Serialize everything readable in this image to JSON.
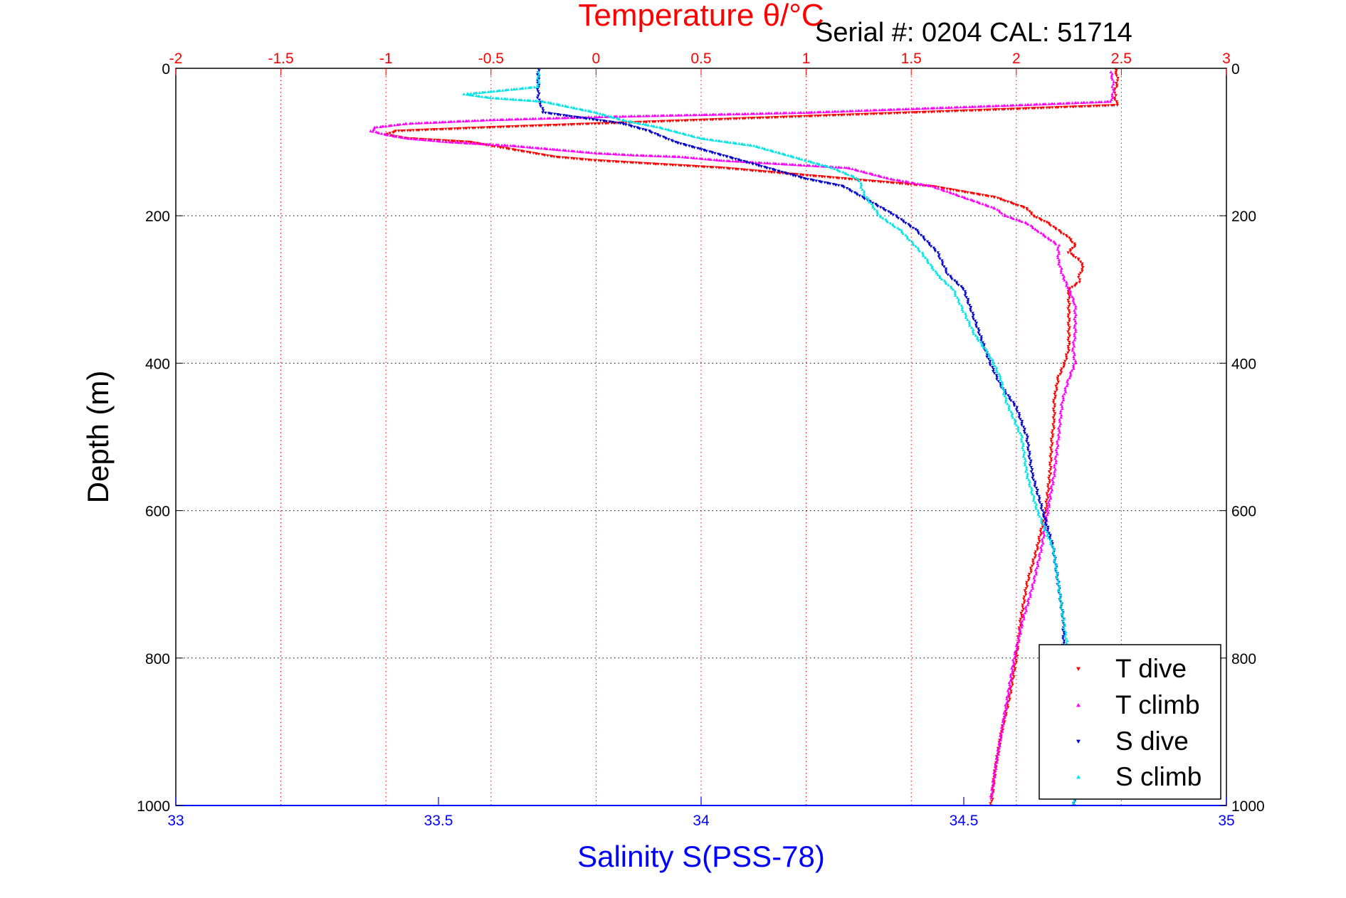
{
  "chart_data": {
    "type": "scatter",
    "title": "Temperature θ/°C",
    "annotation": "Serial #: 0204  CAL: 51714",
    "ylabel": "Depth (m)",
    "x_bottom_label": "Salinity S(PSS-78)",
    "x_top_label": "Temperature θ/°C",
    "ylim": [
      1000,
      0
    ],
    "y_ticks": [
      "0",
      "200",
      "400",
      "600",
      "800",
      "1000"
    ],
    "temperature_axis": {
      "range": [
        -2,
        3
      ],
      "ticks": [
        "-2",
        "-1.5",
        "-1",
        "-0.5",
        "0",
        "0.5",
        "1",
        "1.5",
        "2",
        "2.5",
        "3"
      ],
      "grid": "vertical dotted red"
    },
    "salinity_axis": {
      "range": [
        33,
        35
      ],
      "ticks": [
        "33",
        "33.5",
        "34",
        "34.5",
        "35"
      ]
    },
    "grid": "horizontal dotted black at y ticks; vertical dotted red at temperature ticks",
    "legend_position": "bottom-right",
    "colors": {
      "temperature": "#ff0000",
      "salinity": "#0000ff",
      "t_dive": "#ff0000",
      "t_climb": "#ff00ff",
      "s_dive": "#0000cc",
      "s_climb": "#00e5e5"
    },
    "series": [
      {
        "name": "T dive",
        "axis": "temperature",
        "marker": "triangle-down",
        "color": "#ff0000",
        "points": [
          [
            2.47,
            0
          ],
          [
            2.48,
            10
          ],
          [
            2.48,
            20
          ],
          [
            2.47,
            30
          ],
          [
            2.47,
            40
          ],
          [
            2.48,
            50
          ],
          [
            2.0,
            55
          ],
          [
            1.5,
            60
          ],
          [
            1.0,
            65
          ],
          [
            0.5,
            70
          ],
          [
            0.0,
            75
          ],
          [
            -0.5,
            80
          ],
          [
            -0.95,
            85
          ],
          [
            -1.0,
            90
          ],
          [
            -0.9,
            95
          ],
          [
            -0.6,
            100
          ],
          [
            -0.5,
            105
          ],
          [
            -0.4,
            110
          ],
          [
            -0.3,
            115
          ],
          [
            -0.2,
            120
          ],
          [
            0.0,
            125
          ],
          [
            0.3,
            130
          ],
          [
            0.6,
            135
          ],
          [
            0.8,
            140
          ],
          [
            1.0,
            145
          ],
          [
            1.2,
            150
          ],
          [
            1.4,
            155
          ],
          [
            1.6,
            160
          ],
          [
            1.7,
            165
          ],
          [
            1.8,
            170
          ],
          [
            1.9,
            175
          ],
          [
            1.95,
            180
          ],
          [
            2.0,
            185
          ],
          [
            2.05,
            190
          ],
          [
            2.08,
            200
          ],
          [
            2.15,
            210
          ],
          [
            2.2,
            220
          ],
          [
            2.25,
            230
          ],
          [
            2.28,
            240
          ],
          [
            2.25,
            250
          ],
          [
            2.3,
            260
          ],
          [
            2.32,
            270
          ],
          [
            2.3,
            280
          ],
          [
            2.3,
            290
          ],
          [
            2.25,
            300
          ],
          [
            2.25,
            320
          ],
          [
            2.25,
            340
          ],
          [
            2.25,
            360
          ],
          [
            2.25,
            380
          ],
          [
            2.23,
            400
          ],
          [
            2.2,
            420
          ],
          [
            2.18,
            450
          ],
          [
            2.18,
            480
          ],
          [
            2.17,
            500
          ],
          [
            2.16,
            550
          ],
          [
            2.14,
            600
          ],
          [
            2.1,
            650
          ],
          [
            2.05,
            700
          ],
          [
            2.02,
            750
          ],
          [
            2.0,
            800
          ],
          [
            1.97,
            850
          ],
          [
            1.93,
            900
          ],
          [
            1.9,
            950
          ],
          [
            1.88,
            1000
          ]
        ]
      },
      {
        "name": "T climb",
        "axis": "temperature",
        "marker": "triangle-up",
        "color": "#ff00ff",
        "points": [
          [
            2.45,
            5
          ],
          [
            2.46,
            15
          ],
          [
            2.46,
            25
          ],
          [
            2.46,
            35
          ],
          [
            2.45,
            45
          ],
          [
            2.0,
            50
          ],
          [
            1.5,
            55
          ],
          [
            1.0,
            60
          ],
          [
            0.5,
            63
          ],
          [
            0.0,
            66
          ],
          [
            -0.5,
            70
          ],
          [
            -0.9,
            75
          ],
          [
            -1.05,
            80
          ],
          [
            -1.07,
            85
          ],
          [
            -1.0,
            90
          ],
          [
            -0.9,
            95
          ],
          [
            -0.7,
            100
          ],
          [
            -0.4,
            105
          ],
          [
            -0.2,
            110
          ],
          [
            0.0,
            115
          ],
          [
            0.2,
            118
          ],
          [
            0.4,
            120
          ],
          [
            0.6,
            125
          ],
          [
            0.9,
            130
          ],
          [
            1.2,
            135
          ],
          [
            1.4,
            150
          ],
          [
            1.5,
            155
          ],
          [
            1.6,
            160
          ],
          [
            1.7,
            170
          ],
          [
            1.8,
            180
          ],
          [
            1.9,
            190
          ],
          [
            1.95,
            200
          ],
          [
            2.05,
            210
          ],
          [
            2.1,
            220
          ],
          [
            2.15,
            230
          ],
          [
            2.2,
            240
          ],
          [
            2.2,
            260
          ],
          [
            2.22,
            280
          ],
          [
            2.25,
            300
          ],
          [
            2.28,
            320
          ],
          [
            2.28,
            340
          ],
          [
            2.28,
            360
          ],
          [
            2.27,
            380
          ],
          [
            2.28,
            400
          ],
          [
            2.25,
            420
          ],
          [
            2.22,
            450
          ],
          [
            2.2,
            500
          ],
          [
            2.18,
            550
          ],
          [
            2.15,
            600
          ],
          [
            2.12,
            650
          ],
          [
            2.08,
            700
          ],
          [
            2.03,
            750
          ],
          [
            1.99,
            800
          ],
          [
            1.96,
            850
          ],
          [
            1.93,
            900
          ],
          [
            1.9,
            950
          ],
          [
            1.88,
            990
          ]
        ]
      },
      {
        "name": "S dive",
        "axis": "salinity",
        "marker": "triangle-down",
        "color": "#0000cc",
        "points": [
          [
            33.69,
            0
          ],
          [
            33.69,
            20
          ],
          [
            33.69,
            40
          ],
          [
            33.7,
            60
          ],
          [
            33.75,
            65
          ],
          [
            33.8,
            70
          ],
          [
            33.85,
            75
          ],
          [
            33.9,
            85
          ],
          [
            33.95,
            100
          ],
          [
            34.0,
            110
          ],
          [
            34.05,
            120
          ],
          [
            34.1,
            130
          ],
          [
            34.15,
            140
          ],
          [
            34.2,
            150
          ],
          [
            34.27,
            160
          ],
          [
            34.32,
            180
          ],
          [
            34.37,
            200
          ],
          [
            34.41,
            220
          ],
          [
            34.45,
            250
          ],
          [
            34.47,
            280
          ],
          [
            34.5,
            300
          ],
          [
            34.52,
            340
          ],
          [
            34.54,
            380
          ],
          [
            34.55,
            400
          ],
          [
            34.57,
            430
          ],
          [
            34.6,
            460
          ],
          [
            34.62,
            500
          ],
          [
            34.63,
            550
          ],
          [
            34.65,
            600
          ],
          [
            34.67,
            650
          ],
          [
            34.68,
            700
          ],
          [
            34.69,
            750
          ],
          [
            34.69,
            800
          ],
          [
            34.7,
            850
          ],
          [
            34.7,
            900
          ],
          [
            34.71,
            950
          ],
          [
            34.71,
            1000
          ]
        ]
      },
      {
        "name": "S climb",
        "axis": "salinity",
        "marker": "triangle-up",
        "color": "#00e5e5",
        "points": [
          [
            33.69,
            5
          ],
          [
            33.69,
            25
          ],
          [
            33.55,
            35
          ],
          [
            33.6,
            40
          ],
          [
            33.7,
            45
          ],
          [
            33.8,
            60
          ],
          [
            33.85,
            70
          ],
          [
            33.92,
            80
          ],
          [
            34.0,
            95
          ],
          [
            34.1,
            105
          ],
          [
            34.15,
            115
          ],
          [
            34.2,
            125
          ],
          [
            34.25,
            135
          ],
          [
            34.3,
            150
          ],
          [
            34.31,
            170
          ],
          [
            34.34,
            200
          ],
          [
            34.38,
            220
          ],
          [
            34.42,
            250
          ],
          [
            34.45,
            280
          ],
          [
            34.48,
            300
          ],
          [
            34.5,
            330
          ],
          [
            34.52,
            360
          ],
          [
            34.55,
            390
          ],
          [
            34.57,
            420
          ],
          [
            34.58,
            450
          ],
          [
            34.61,
            500
          ],
          [
            34.62,
            550
          ],
          [
            34.64,
            600
          ],
          [
            34.67,
            650
          ],
          [
            34.68,
            700
          ],
          [
            34.69,
            750
          ],
          [
            34.7,
            800
          ],
          [
            34.7,
            850
          ],
          [
            34.71,
            900
          ],
          [
            34.71,
            950
          ],
          [
            34.71,
            1000
          ]
        ]
      }
    ]
  }
}
